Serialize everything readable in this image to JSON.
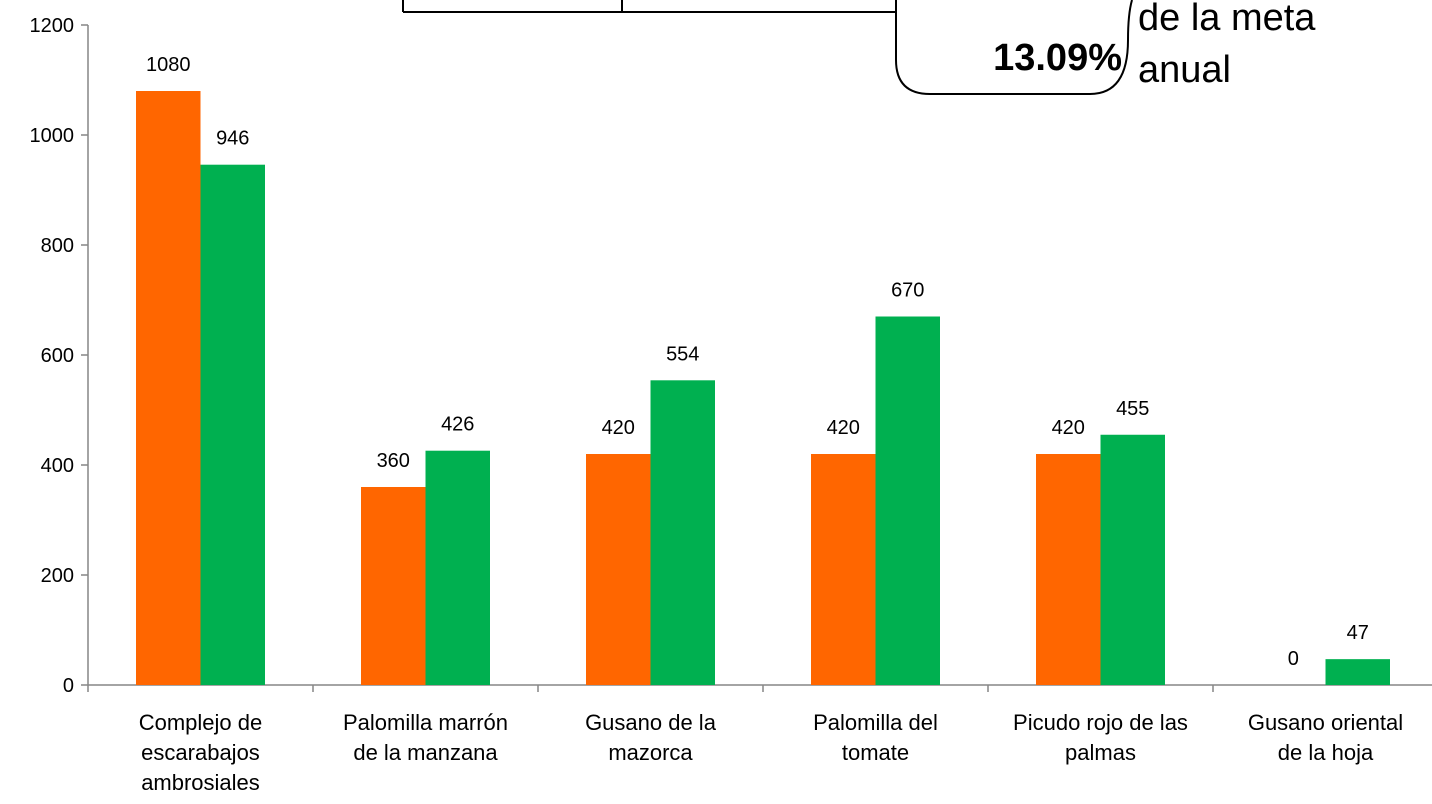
{
  "chart_data": {
    "type": "bar",
    "title": "",
    "xlabel": "",
    "ylabel": "",
    "ylim": [
      0,
      1200
    ],
    "yticks": [
      0,
      200,
      400,
      600,
      800,
      1000,
      1200
    ],
    "grid": false,
    "legend": "none",
    "categories": [
      [
        "Complejo de",
        "escarabajos",
        "ambrosiales"
      ],
      [
        "Palomilla marrón",
        "de la manzana"
      ],
      [
        "Gusano de la",
        "mazorca"
      ],
      [
        "Palomilla del",
        "tomate"
      ],
      [
        "Picudo rojo de las",
        "palmas"
      ],
      [
        "Gusano oriental",
        "de la hoja"
      ]
    ],
    "series": [
      {
        "color": "#ff6600",
        "values": [
          1080,
          360,
          420,
          420,
          420,
          0
        ]
      },
      {
        "color": "#00b050",
        "values": [
          946,
          426,
          554,
          670,
          455,
          47
        ]
      }
    ]
  },
  "callout": {
    "value": "13.09%",
    "note_lines": [
      "de la meta",
      "anual"
    ]
  }
}
